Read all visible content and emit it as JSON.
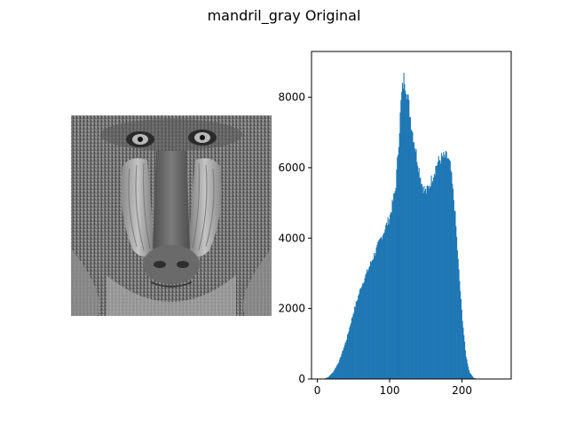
{
  "figure": {
    "title": "mandril_gray Original"
  },
  "image": {
    "alt_icon": "grayscale-mandrill-photo-icon"
  },
  "colors": {
    "bar": "#1f77b4",
    "axis": "#000000"
  },
  "chart_data": {
    "type": "bar",
    "title": "",
    "xlabel": "",
    "ylabel": "",
    "xlim": [
      -8,
      268
    ],
    "ylim": [
      0,
      9300
    ],
    "xticks": [
      0,
      100,
      200
    ],
    "yticks": [
      0,
      2000,
      4000,
      6000,
      8000
    ],
    "grid": false,
    "bins": 256,
    "profile": [
      [
        0,
        0
      ],
      [
        8,
        0
      ],
      [
        15,
        50
      ],
      [
        22,
        200
      ],
      [
        30,
        500
      ],
      [
        40,
        1100
      ],
      [
        50,
        1900
      ],
      [
        60,
        2600
      ],
      [
        70,
        3100
      ],
      [
        80,
        3600
      ],
      [
        90,
        4100
      ],
      [
        100,
        4600
      ],
      [
        108,
        5400
      ],
      [
        112,
        6600
      ],
      [
        116,
        8000
      ],
      [
        120,
        8600
      ],
      [
        125,
        8000
      ],
      [
        130,
        7200
      ],
      [
        135,
        6600
      ],
      [
        140,
        6000
      ],
      [
        145,
        5500
      ],
      [
        150,
        5300
      ],
      [
        155,
        5500
      ],
      [
        160,
        5800
      ],
      [
        165,
        6100
      ],
      [
        170,
        6250
      ],
      [
        175,
        6300
      ],
      [
        180,
        6300
      ],
      [
        184,
        6000
      ],
      [
        190,
        4800
      ],
      [
        195,
        3200
      ],
      [
        200,
        1800
      ],
      [
        205,
        700
      ],
      [
        210,
        200
      ],
      [
        216,
        30
      ],
      [
        222,
        0
      ],
      [
        255,
        0
      ]
    ]
  }
}
